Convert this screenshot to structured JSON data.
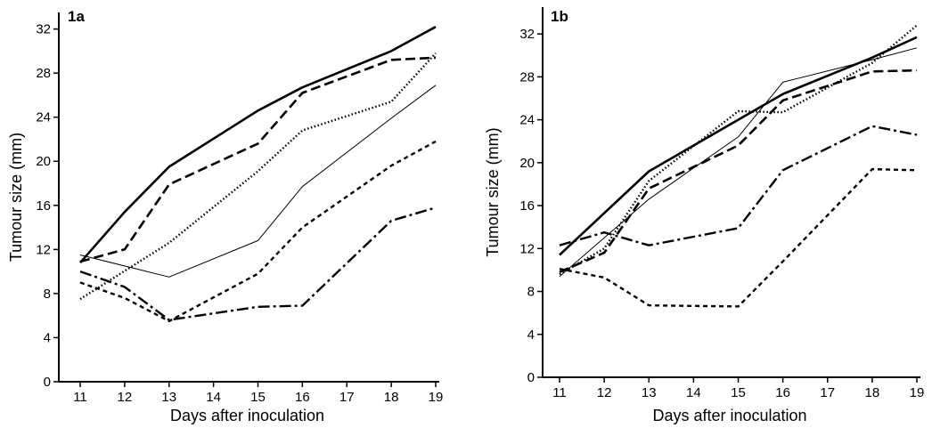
{
  "chart_data": [
    {
      "type": "line",
      "panel_label": "1a",
      "xlabel": "Days after inoculation",
      "ylabel": "Tumour size (mm)",
      "xlim": [
        10.6,
        19
      ],
      "ylim": [
        0,
        33.5
      ],
      "xticks": [
        11,
        12,
        13,
        14,
        15,
        16,
        17,
        18,
        19
      ],
      "yticks": [
        0,
        4,
        8,
        12,
        16,
        20,
        24,
        28,
        32
      ],
      "grid": false,
      "legend": "none",
      "series": [
        {
          "style": "solid",
          "x": [
            11,
            12,
            13,
            15,
            16,
            18,
            19
          ],
          "y": [
            10.8,
            15.4,
            19.5,
            24.6,
            26.7,
            30.0,
            32.2
          ]
        },
        {
          "style": "long-dash",
          "x": [
            11,
            12,
            13,
            15,
            16,
            18,
            19
          ],
          "y": [
            10.9,
            12.0,
            17.9,
            21.6,
            26.2,
            29.2,
            29.4
          ]
        },
        {
          "style": "dotted",
          "x": [
            11,
            13,
            15,
            16,
            18,
            19
          ],
          "y": [
            7.5,
            12.6,
            19.1,
            22.8,
            25.4,
            29.8
          ]
        },
        {
          "style": "thin-solid",
          "x": [
            11,
            13,
            15,
            16,
            18,
            19
          ],
          "y": [
            11.5,
            9.5,
            12.8,
            17.7,
            23.9,
            26.9
          ]
        },
        {
          "style": "short-dash",
          "x": [
            11,
            12,
            13,
            15,
            16,
            18,
            19
          ],
          "y": [
            9.0,
            7.6,
            5.5,
            9.8,
            14.0,
            19.6,
            21.8
          ]
        },
        {
          "style": "dash-dot",
          "x": [
            11,
            12,
            13,
            15,
            16,
            18,
            19
          ],
          "y": [
            10.0,
            8.6,
            5.6,
            6.8,
            6.9,
            14.6,
            15.8
          ]
        }
      ]
    },
    {
      "type": "line",
      "panel_label": "1b",
      "xlabel": "Days after inoculation",
      "ylabel": "Tumour size (mm)",
      "xlim": [
        10.6,
        19
      ],
      "ylim": [
        0,
        34.5
      ],
      "xticks": [
        11,
        12,
        13,
        14,
        15,
        16,
        17,
        18,
        19
      ],
      "yticks": [
        0,
        4,
        8,
        12,
        16,
        20,
        24,
        28,
        32
      ],
      "grid": false,
      "legend": "none",
      "series": [
        {
          "style": "solid",
          "x": [
            11,
            13,
            15,
            16,
            18,
            19
          ],
          "y": [
            11.4,
            19.2,
            24.0,
            26.4,
            29.8,
            31.7
          ]
        },
        {
          "style": "long-dash",
          "x": [
            11,
            12,
            13,
            15,
            16,
            18,
            19
          ],
          "y": [
            9.8,
            11.6,
            17.6,
            21.6,
            25.8,
            28.5,
            28.6
          ]
        },
        {
          "style": "dotted",
          "x": [
            11,
            12,
            13,
            15,
            16,
            18,
            19
          ],
          "y": [
            9.6,
            12.0,
            18.3,
            24.8,
            24.7,
            29.3,
            32.8
          ]
        },
        {
          "style": "thin-solid",
          "x": [
            11,
            13,
            15,
            16,
            18,
            19
          ],
          "y": [
            9.4,
            16.6,
            22.4,
            27.5,
            29.6,
            30.7
          ]
        },
        {
          "style": "short-dash",
          "x": [
            11,
            12,
            13,
            15,
            16,
            18,
            19
          ],
          "y": [
            10.1,
            9.3,
            6.7,
            6.6,
            10.8,
            19.4,
            19.3
          ]
        },
        {
          "style": "dash-dot",
          "x": [
            11,
            12,
            13,
            15,
            16,
            18,
            19
          ],
          "y": [
            12.3,
            13.5,
            12.3,
            13.9,
            19.3,
            23.4,
            22.6
          ]
        }
      ]
    }
  ]
}
